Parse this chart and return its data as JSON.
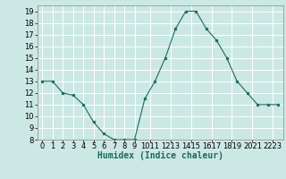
{
  "x": [
    0,
    1,
    2,
    3,
    4,
    5,
    6,
    7,
    8,
    9,
    10,
    11,
    12,
    13,
    14,
    15,
    16,
    17,
    18,
    19,
    20,
    21,
    22,
    23
  ],
  "y": [
    13,
    13,
    12,
    11.8,
    11,
    9.5,
    8.5,
    8,
    8,
    8,
    11.5,
    13,
    15,
    17.5,
    19,
    19,
    17.5,
    16.5,
    15,
    13,
    12,
    11,
    11,
    11
  ],
  "ylim": [
    8,
    19.5
  ],
  "xlim": [
    -0.5,
    23.5
  ],
  "yticks": [
    8,
    9,
    10,
    11,
    12,
    13,
    14,
    15,
    16,
    17,
    18,
    19
  ],
  "xtick_labels": [
    "0",
    "1",
    "2",
    "3",
    "4",
    "5",
    "6",
    "7",
    "8",
    "9",
    "1011",
    "1213",
    "1415",
    "1617",
    "1819",
    "2021",
    "2223"
  ],
  "xtick_positions": [
    0,
    1,
    2,
    3,
    4,
    5,
    6,
    7,
    8,
    9,
    10.5,
    12.5,
    14.5,
    16.5,
    18.5,
    20.5,
    22.5
  ],
  "xlabel": "Humidex (Indice chaleur)",
  "line_color": "#1a6b5a",
  "marker_color": "#1a6b5a",
  "bg_color": "#cce8e4",
  "grid_color": "#ffffff",
  "label_fontsize": 7,
  "tick_fontsize": 6
}
